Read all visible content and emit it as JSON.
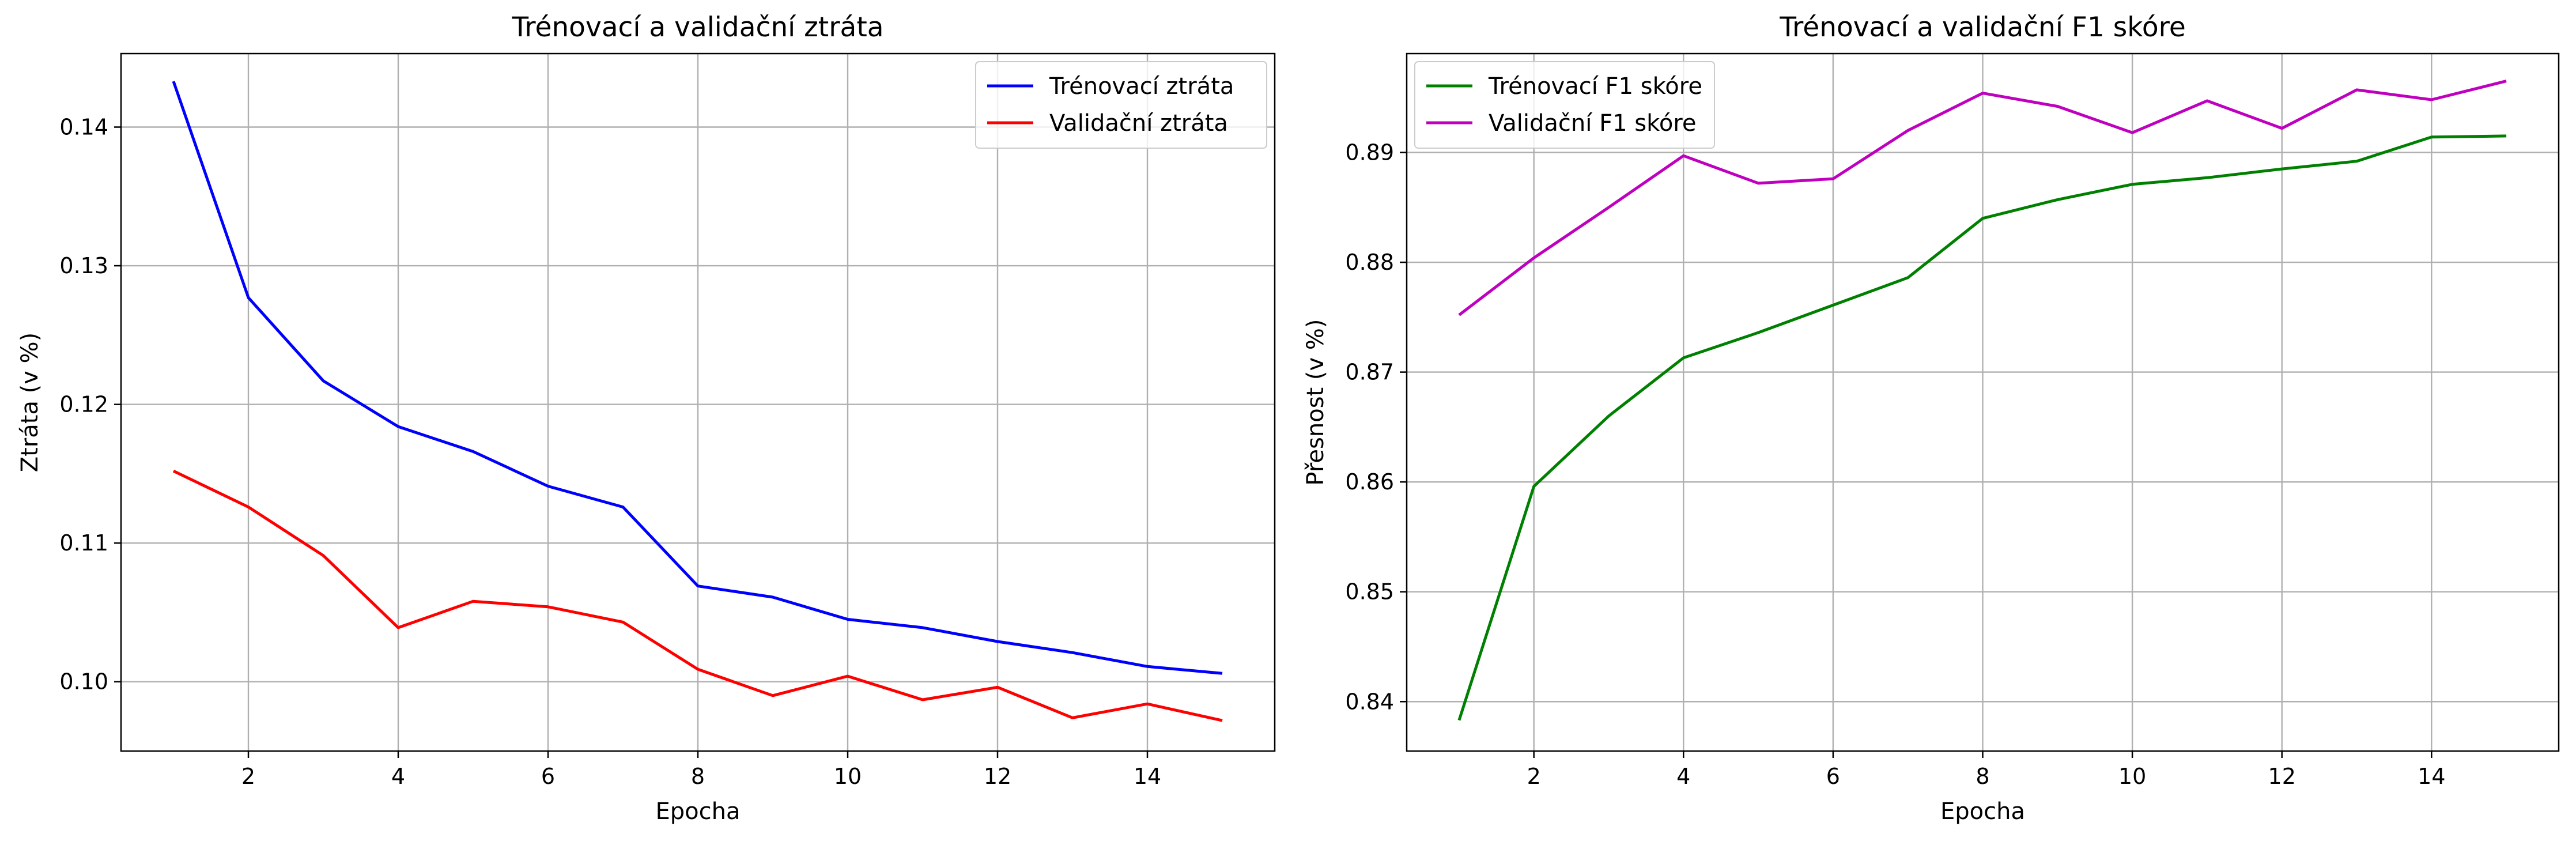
{
  "chart_data": [
    {
      "type": "line",
      "title": "Trénovací a validační ztráta",
      "xlabel": "Epocha",
      "ylabel": "Ztráta (v %)",
      "xlim": [
        0.3,
        15.7
      ],
      "ylim": [
        0.095,
        0.1453
      ],
      "xticks": [
        2,
        4,
        6,
        8,
        10,
        12,
        14
      ],
      "xtick_labels": [
        "2",
        "4",
        "6",
        "8",
        "10",
        "12",
        "14"
      ],
      "yticks": [
        0.1,
        0.11,
        0.12,
        0.13,
        0.14
      ],
      "ytick_labels": [
        "0.10",
        "0.11",
        "0.12",
        "0.13",
        "0.14"
      ],
      "grid": true,
      "legend_position": "top-right",
      "x": [
        1,
        2,
        3,
        4,
        5,
        6,
        7,
        8,
        9,
        10,
        11,
        12,
        13,
        14,
        15
      ],
      "series": [
        {
          "name": "Trénovací ztráta",
          "color": "#0000ff",
          "values": [
            0.1433,
            0.1277,
            0.1217,
            0.1184,
            0.1166,
            0.1141,
            0.1126,
            0.1069,
            0.1061,
            0.1045,
            0.1039,
            0.1029,
            0.1021,
            0.1011,
            0.1006
          ]
        },
        {
          "name": "Validační ztráta",
          "color": "#ff0000",
          "values": [
            0.1152,
            0.1126,
            0.1091,
            0.1039,
            0.1058,
            0.1054,
            0.1043,
            0.1009,
            0.099,
            0.1004,
            0.0987,
            0.0996,
            0.0974,
            0.0984,
            0.0972
          ]
        }
      ]
    },
    {
      "type": "line",
      "title": "Trénovací a validační F1 skóre",
      "xlabel": "Epocha",
      "ylabel": "Přesnost (v %)",
      "xlim": [
        0.3,
        15.7
      ],
      "ylim": [
        0.8355,
        0.899
      ],
      "xticks": [
        2,
        4,
        6,
        8,
        10,
        12,
        14
      ],
      "xtick_labels": [
        "2",
        "4",
        "6",
        "8",
        "10",
        "12",
        "14"
      ],
      "yticks": [
        0.84,
        0.85,
        0.86,
        0.87,
        0.88,
        0.89
      ],
      "ytick_labels": [
        "0.84",
        "0.85",
        "0.86",
        "0.87",
        "0.88",
        "0.89"
      ],
      "grid": true,
      "legend_position": "top-left",
      "x": [
        1,
        2,
        3,
        4,
        5,
        6,
        7,
        8,
        9,
        10,
        11,
        12,
        13,
        14,
        15
      ],
      "series": [
        {
          "name": "Trénovací F1 skóre",
          "color": "#008000",
          "values": [
            0.8383,
            0.8596,
            0.866,
            0.8713,
            0.8736,
            0.8761,
            0.8786,
            0.884,
            0.8857,
            0.8871,
            0.8877,
            0.8885,
            0.8892,
            0.8914,
            0.8915
          ]
        },
        {
          "name": "Validační F1 skóre",
          "color": "#bf00bf",
          "values": [
            0.8752,
            0.8804,
            0.885,
            0.8897,
            0.8872,
            0.8876,
            0.892,
            0.8954,
            0.8942,
            0.8918,
            0.8947,
            0.8922,
            0.8957,
            0.8948,
            0.8965
          ]
        }
      ]
    }
  ]
}
